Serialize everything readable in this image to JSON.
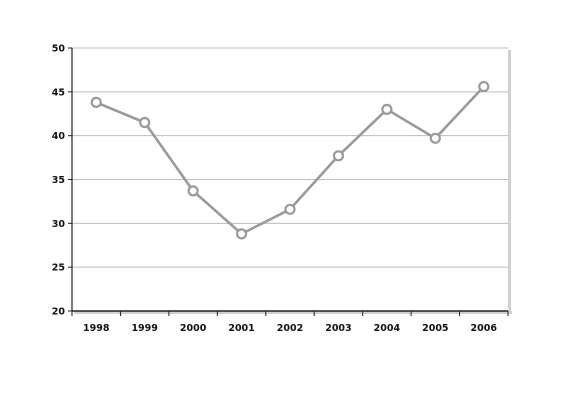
{
  "chart_data": {
    "type": "line",
    "title": "",
    "xlabel": "",
    "ylabel": "",
    "categories": [
      "1998",
      "1999",
      "2000",
      "2001",
      "2002",
      "2003",
      "2004",
      "2005",
      "2006"
    ],
    "series": [
      {
        "values": [
          43.8,
          41.5,
          33.7,
          28.8,
          31.6,
          37.7,
          43.0,
          39.7,
          45.6
        ]
      }
    ],
    "ylim": [
      20,
      50
    ],
    "yticks": [
      20,
      25,
      30,
      35,
      40,
      45,
      50
    ],
    "grid": "horizontal",
    "legend": "none",
    "colors": {
      "line": "#9a9a9a",
      "marker_fill": "#ffffff",
      "grid": "#bdbdbd",
      "axis": "#222222",
      "frame_shadow": "#d0d0d0"
    }
  }
}
